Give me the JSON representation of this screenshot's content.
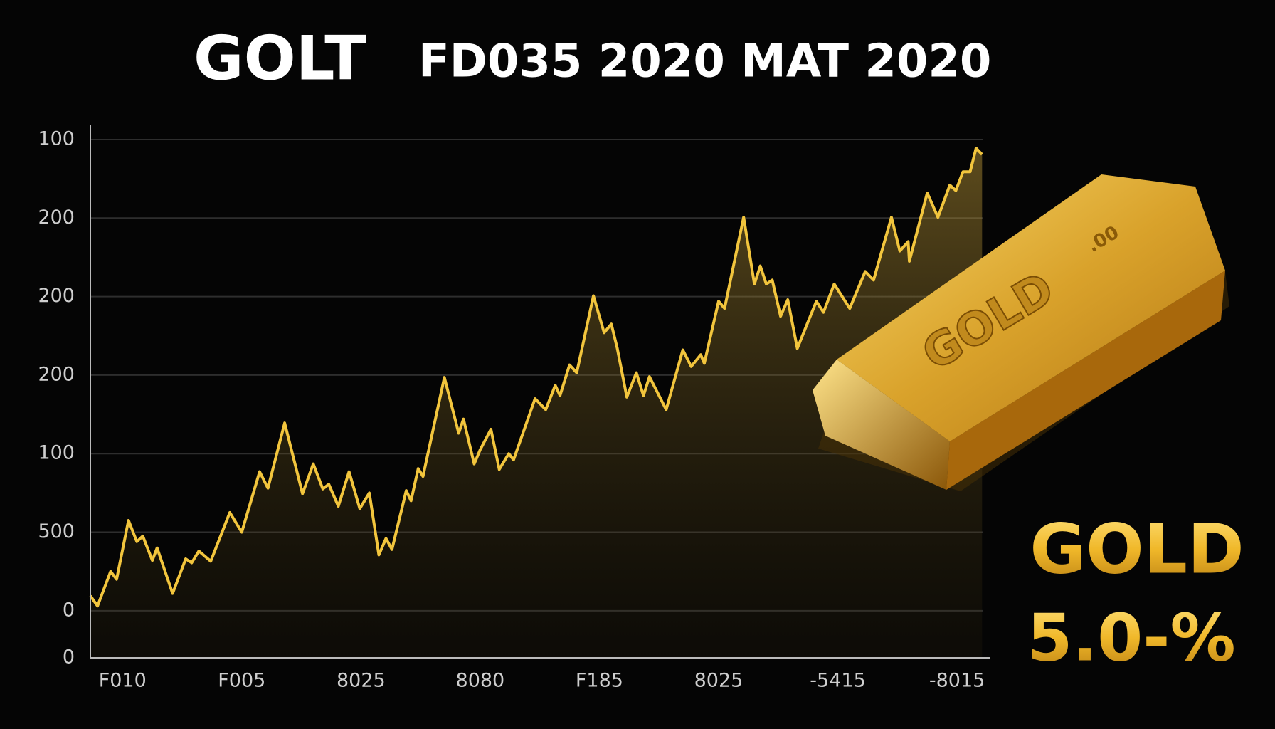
{
  "chart_data": {
    "type": "line",
    "title": "GOLT",
    "subtitle": "FD035 2020 MAT 2020",
    "color": "#f2c53d",
    "xlim": [
      -0.27,
      7.28
    ],
    "xticks": [
      {
        "value": 0,
        "label": "F010"
      },
      {
        "value": 1,
        "label": "F005"
      },
      {
        "value": 2,
        "label": "8025"
      },
      {
        "value": 3,
        "label": "8080"
      },
      {
        "value": 4,
        "label": "F185"
      },
      {
        "value": 5,
        "label": "8025"
      },
      {
        "value": 6,
        "label": "-5415"
      },
      {
        "value": 7,
        "label": "-8015"
      }
    ],
    "ylim": [
      0,
      6.6
    ],
    "yticks": [
      0,
      {
        "value": 0.6,
        "label": "0"
      },
      {
        "value": 1.6,
        "label": "500"
      },
      {
        "value": 2.6,
        "label": "100"
      },
      {
        "value": 3.6,
        "label": "200"
      },
      {
        "value": 4.6,
        "label": "200"
      },
      {
        "value": 5.6,
        "label": "200"
      },
      {
        "value": 6.6,
        "label": "100"
      }
    ],
    "grid": true,
    "x": [
      -0.27,
      -0.21,
      -0.1,
      -0.05,
      0.05,
      0.12,
      0.17,
      0.25,
      0.29,
      0.42,
      0.53,
      0.58,
      0.64,
      0.74,
      0.9,
      1.0,
      1.15,
      1.22,
      1.36,
      1.51,
      1.6,
      1.68,
      1.73,
      1.81,
      1.9,
      1.99,
      2.07,
      2.15,
      2.21,
      2.26,
      2.38,
      2.42,
      2.48,
      2.52,
      2.7,
      2.82,
      2.86,
      2.95,
      3.0,
      3.09,
      3.16,
      3.24,
      3.28,
      3.46,
      3.55,
      3.63,
      3.67,
      3.75,
      3.81,
      3.95,
      4.04,
      4.1,
      4.15,
      4.23,
      4.31,
      4.37,
      4.42,
      4.56,
      4.7,
      4.77,
      4.85,
      4.88,
      5.0,
      5.05,
      5.21,
      5.3,
      5.35,
      5.4,
      5.45,
      5.52,
      5.58,
      5.66,
      5.82,
      5.88,
      5.97,
      6.1,
      6.23,
      6.3,
      6.45,
      6.52,
      6.59,
      6.6,
      6.75,
      6.84,
      6.94,
      6.99,
      7.05,
      7.11,
      7.16,
      7.21
    ],
    "values": [
      0.79,
      0.66,
      1.1,
      1.0,
      1.75,
      1.48,
      1.55,
      1.24,
      1.4,
      0.82,
      1.26,
      1.21,
      1.36,
      1.23,
      1.85,
      1.6,
      2.37,
      2.16,
      2.99,
      2.09,
      2.47,
      2.15,
      2.21,
      1.93,
      2.37,
      1.9,
      2.1,
      1.31,
      1.52,
      1.38,
      2.13,
      2.0,
      2.41,
      2.31,
      3.57,
      2.86,
      3.04,
      2.47,
      2.65,
      2.91,
      2.4,
      2.6,
      2.52,
      3.3,
      3.16,
      3.47,
      3.34,
      3.73,
      3.63,
      4.61,
      4.14,
      4.25,
      3.94,
      3.32,
      3.63,
      3.34,
      3.58,
      3.16,
      3.92,
      3.71,
      3.86,
      3.75,
      4.54,
      4.45,
      5.61,
      4.76,
      4.99,
      4.76,
      4.81,
      4.35,
      4.56,
      3.94,
      4.54,
      4.4,
      4.76,
      4.45,
      4.92,
      4.81,
      5.61,
      5.18,
      5.3,
      5.05,
      5.92,
      5.61,
      6.02,
      5.95,
      6.19,
      6.19,
      6.49,
      6.41
    ],
    "bar_engraving": "GOLD",
    "bar_engraving_suffix": ".00",
    "badge_label": "GOLD",
    "badge_value": "5.0-%"
  }
}
